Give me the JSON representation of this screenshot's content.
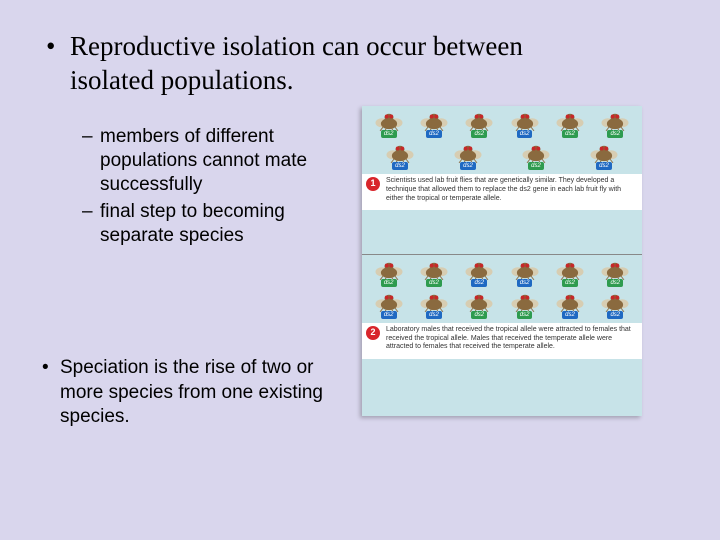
{
  "background_color": "#d9d6ed",
  "main_bullet": "Reproductive isolation can occur between isolated populations.",
  "main_bullet_font": "Times New Roman",
  "main_bullet_fontsize": 27,
  "sub_bullets": [
    "members of different populations cannot mate successfully",
    "final step to becoming separate species"
  ],
  "sub_bullet_fontsize": 19,
  "second_main_bullet": "Speciation is the rise of two or more species from one existing species.",
  "diagram": {
    "panel_bg_color": "#c7e3e8",
    "fly_body_color": "#8a6a3f",
    "fly_wing_color": "#d9c9a8",
    "fly_eye_color": "#c62828",
    "tag_green": "#2e9b4f",
    "tag_blue": "#1f69c2",
    "tag_label": "ds2",
    "panel1": {
      "num": "1",
      "caption": "Scientists used lab fruit flies that are genetically similar. They developed a technique that allowed them to replace the ds2 gene in each lab fruit fly with either the tropical or temperate allele.",
      "flies": [
        "green",
        "blue",
        "green",
        "blue",
        "green",
        "green",
        "blue",
        "blue",
        "green",
        "blue"
      ]
    },
    "panel2": {
      "num": "2",
      "caption": "Laboratory males that received the tropical allele were attracted to females that received the tropical allele. Males that received the temperate allele were attracted to females that received the temperate allele.",
      "flies": [
        "green",
        "green",
        "blue",
        "blue",
        "green",
        "green",
        "blue",
        "blue",
        "green",
        "green",
        "blue",
        "blue"
      ]
    }
  }
}
